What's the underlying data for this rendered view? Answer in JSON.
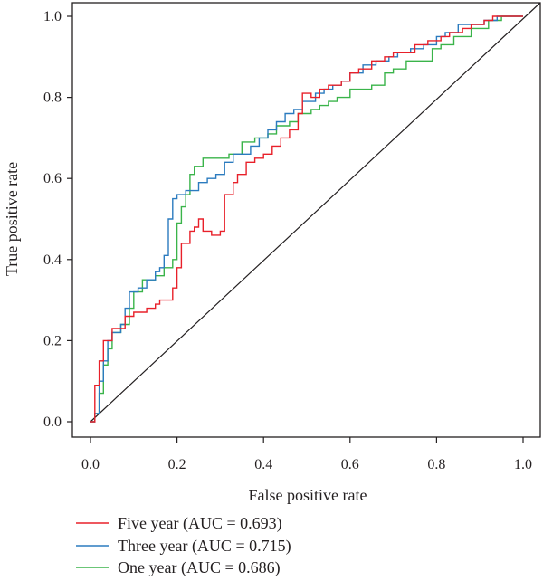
{
  "chart_data": {
    "type": "line",
    "title": "",
    "xlabel": "False positive rate",
    "ylabel": "True positive rate",
    "xlim": [
      0,
      1
    ],
    "ylim": [
      0,
      1
    ],
    "x_ticks": [
      "0.0",
      "0.2",
      "0.4",
      "0.6",
      "0.8",
      "1.0"
    ],
    "y_ticks": [
      "0.0",
      "0.2",
      "0.4",
      "0.6",
      "0.8",
      "1.0"
    ],
    "grid": false,
    "legend_position": "bottom-left",
    "diagonal_reference": true,
    "series": [
      {
        "name": "Five year (AUC = 0.693)",
        "color": "#e8202a",
        "points": [
          [
            0.0,
            0.0
          ],
          [
            0.01,
            0.01
          ],
          [
            0.01,
            0.09
          ],
          [
            0.02,
            0.09
          ],
          [
            0.02,
            0.15
          ],
          [
            0.03,
            0.16
          ],
          [
            0.03,
            0.2
          ],
          [
            0.05,
            0.21
          ],
          [
            0.05,
            0.23
          ],
          [
            0.07,
            0.23
          ],
          [
            0.08,
            0.26
          ],
          [
            0.1,
            0.27
          ],
          [
            0.12,
            0.27
          ],
          [
            0.13,
            0.28
          ],
          [
            0.15,
            0.29
          ],
          [
            0.16,
            0.3
          ],
          [
            0.17,
            0.3
          ],
          [
            0.19,
            0.33
          ],
          [
            0.2,
            0.38
          ],
          [
            0.21,
            0.44
          ],
          [
            0.23,
            0.47
          ],
          [
            0.24,
            0.48
          ],
          [
            0.25,
            0.5
          ],
          [
            0.26,
            0.47
          ],
          [
            0.28,
            0.46
          ],
          [
            0.3,
            0.47
          ],
          [
            0.31,
            0.56
          ],
          [
            0.33,
            0.59
          ],
          [
            0.34,
            0.61
          ],
          [
            0.36,
            0.64
          ],
          [
            0.38,
            0.65
          ],
          [
            0.4,
            0.66
          ],
          [
            0.42,
            0.68
          ],
          [
            0.44,
            0.7
          ],
          [
            0.46,
            0.72
          ],
          [
            0.48,
            0.76
          ],
          [
            0.49,
            0.81
          ],
          [
            0.51,
            0.8
          ],
          [
            0.53,
            0.82
          ],
          [
            0.55,
            0.83
          ],
          [
            0.58,
            0.84
          ],
          [
            0.6,
            0.86
          ],
          [
            0.62,
            0.87
          ],
          [
            0.65,
            0.89
          ],
          [
            0.68,
            0.9
          ],
          [
            0.7,
            0.91
          ],
          [
            0.72,
            0.91
          ],
          [
            0.75,
            0.93
          ],
          [
            0.78,
            0.94
          ],
          [
            0.81,
            0.95
          ],
          [
            0.83,
            0.96
          ],
          [
            0.86,
            0.97
          ],
          [
            0.88,
            0.98
          ],
          [
            0.91,
            0.99
          ],
          [
            0.93,
            1.0
          ],
          [
            0.97,
            1.0
          ],
          [
            1.0,
            1.0
          ]
        ]
      },
      {
        "name": "Three year (AUC = 0.715)",
        "color": "#2b7bbf",
        "points": [
          [
            0.0,
            0.0
          ],
          [
            0.01,
            0.02
          ],
          [
            0.02,
            0.1
          ],
          [
            0.03,
            0.15
          ],
          [
            0.04,
            0.2
          ],
          [
            0.05,
            0.22
          ],
          [
            0.07,
            0.24
          ],
          [
            0.08,
            0.28
          ],
          [
            0.09,
            0.32
          ],
          [
            0.11,
            0.33
          ],
          [
            0.13,
            0.35
          ],
          [
            0.15,
            0.37
          ],
          [
            0.16,
            0.38
          ],
          [
            0.17,
            0.41
          ],
          [
            0.18,
            0.5
          ],
          [
            0.19,
            0.55
          ],
          [
            0.2,
            0.56
          ],
          [
            0.22,
            0.57
          ],
          [
            0.24,
            0.57
          ],
          [
            0.25,
            0.59
          ],
          [
            0.27,
            0.6
          ],
          [
            0.29,
            0.61
          ],
          [
            0.31,
            0.64
          ],
          [
            0.33,
            0.66
          ],
          [
            0.35,
            0.66
          ],
          [
            0.37,
            0.68
          ],
          [
            0.39,
            0.7
          ],
          [
            0.41,
            0.72
          ],
          [
            0.43,
            0.74
          ],
          [
            0.45,
            0.76
          ],
          [
            0.47,
            0.77
          ],
          [
            0.49,
            0.79
          ],
          [
            0.52,
            0.81
          ],
          [
            0.54,
            0.82
          ],
          [
            0.56,
            0.83
          ],
          [
            0.58,
            0.84
          ],
          [
            0.6,
            0.86
          ],
          [
            0.63,
            0.88
          ],
          [
            0.66,
            0.89
          ],
          [
            0.69,
            0.9
          ],
          [
            0.71,
            0.91
          ],
          [
            0.74,
            0.92
          ],
          [
            0.77,
            0.93
          ],
          [
            0.8,
            0.95
          ],
          [
            0.82,
            0.96
          ],
          [
            0.85,
            0.98
          ],
          [
            0.88,
            0.98
          ],
          [
            0.91,
            0.99
          ],
          [
            0.94,
            1.0
          ],
          [
            0.97,
            1.0
          ],
          [
            1.0,
            1.0
          ]
        ]
      },
      {
        "name": "One year (AUC = 0.686)",
        "color": "#3ab44a",
        "points": [
          [
            0.0,
            0.0
          ],
          [
            0.01,
            0.02
          ],
          [
            0.02,
            0.07
          ],
          [
            0.03,
            0.14
          ],
          [
            0.04,
            0.18
          ],
          [
            0.05,
            0.22
          ],
          [
            0.07,
            0.24
          ],
          [
            0.09,
            0.28
          ],
          [
            0.1,
            0.32
          ],
          [
            0.12,
            0.35
          ],
          [
            0.15,
            0.36
          ],
          [
            0.17,
            0.38
          ],
          [
            0.19,
            0.4
          ],
          [
            0.2,
            0.49
          ],
          [
            0.21,
            0.53
          ],
          [
            0.22,
            0.56
          ],
          [
            0.23,
            0.61
          ],
          [
            0.24,
            0.63
          ],
          [
            0.26,
            0.65
          ],
          [
            0.29,
            0.65
          ],
          [
            0.32,
            0.66
          ],
          [
            0.35,
            0.69
          ],
          [
            0.38,
            0.7
          ],
          [
            0.41,
            0.71
          ],
          [
            0.43,
            0.73
          ],
          [
            0.46,
            0.74
          ],
          [
            0.48,
            0.76
          ],
          [
            0.51,
            0.77
          ],
          [
            0.53,
            0.78
          ],
          [
            0.55,
            0.79
          ],
          [
            0.57,
            0.8
          ],
          [
            0.6,
            0.82
          ],
          [
            0.62,
            0.82
          ],
          [
            0.65,
            0.83
          ],
          [
            0.68,
            0.86
          ],
          [
            0.7,
            0.87
          ],
          [
            0.73,
            0.89
          ],
          [
            0.76,
            0.89
          ],
          [
            0.79,
            0.92
          ],
          [
            0.81,
            0.93
          ],
          [
            0.84,
            0.95
          ],
          [
            0.88,
            0.97
          ],
          [
            0.92,
            0.99
          ],
          [
            0.95,
            1.0
          ],
          [
            1.0,
            1.0
          ]
        ]
      }
    ]
  }
}
